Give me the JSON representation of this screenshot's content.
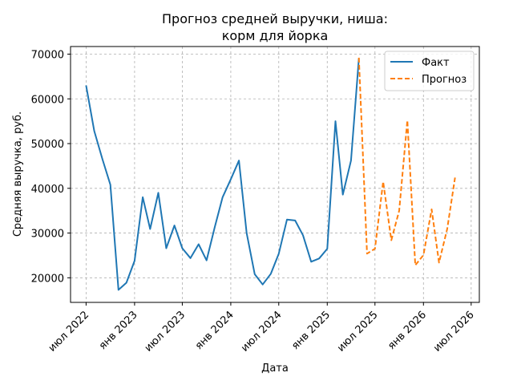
{
  "chart_data": {
    "type": "line",
    "title_line1": "Прогноз средней выручки, ниша:",
    "title_line2": "корм для йорка",
    "xlabel": "Дата",
    "ylabel": "Средняя выручка, руб.",
    "ylim": [
      14500,
      71700
    ],
    "xlim": [
      "2022-05-03",
      "2026-08-01"
    ],
    "yticks": [
      20000,
      30000,
      40000,
      50000,
      60000,
      70000
    ],
    "xticks": [
      {
        "date": "2022-07-01",
        "label": "июл 2022"
      },
      {
        "date": "2023-01-01",
        "label": "янв 2023"
      },
      {
        "date": "2023-07-01",
        "label": "июл 2023"
      },
      {
        "date": "2024-01-01",
        "label": "янв 2024"
      },
      {
        "date": "2024-07-01",
        "label": "июл 2024"
      },
      {
        "date": "2025-01-01",
        "label": "янв 2025"
      },
      {
        "date": "2025-07-01",
        "label": "июл 2025"
      },
      {
        "date": "2026-01-01",
        "label": "янв 2026"
      },
      {
        "date": "2026-07-01",
        "label": "июл 2026"
      }
    ],
    "grid": true,
    "legend_position": "top-right",
    "series": [
      {
        "name": "Факт",
        "color": "#1f77b4",
        "style": "solid",
        "points": [
          [
            "2022-07-01",
            63000
          ],
          [
            "2022-08-01",
            52800
          ],
          [
            "2022-09-01",
            46500
          ],
          [
            "2022-10-01",
            40800
          ],
          [
            "2022-11-01",
            17300
          ],
          [
            "2022-12-01",
            18900
          ],
          [
            "2023-01-01",
            23800
          ],
          [
            "2023-02-01",
            38000
          ],
          [
            "2023-03-01",
            30900
          ],
          [
            "2023-04-01",
            39000
          ],
          [
            "2023-05-01",
            26600
          ],
          [
            "2023-06-01",
            31700
          ],
          [
            "2023-07-01",
            26600
          ],
          [
            "2023-08-01",
            24400
          ],
          [
            "2023-09-01",
            27500
          ],
          [
            "2023-10-01",
            23900
          ],
          [
            "2023-11-01",
            31300
          ],
          [
            "2023-12-01",
            38000
          ],
          [
            "2024-01-01",
            42000
          ],
          [
            "2024-02-01",
            46200
          ],
          [
            "2024-03-01",
            30000
          ],
          [
            "2024-04-01",
            20800
          ],
          [
            "2024-05-01",
            18500
          ],
          [
            "2024-06-01",
            20900
          ],
          [
            "2024-07-01",
            25400
          ],
          [
            "2024-08-01",
            33000
          ],
          [
            "2024-09-01",
            32800
          ],
          [
            "2024-10-01",
            29500
          ],
          [
            "2024-11-01",
            23600
          ],
          [
            "2024-12-01",
            24300
          ],
          [
            "2025-01-01",
            26500
          ],
          [
            "2025-02-01",
            55000
          ],
          [
            "2025-03-01",
            38600
          ],
          [
            "2025-04-01",
            46200
          ],
          [
            "2025-05-01",
            69000
          ]
        ]
      },
      {
        "name": "Прогноз",
        "color": "#ff7f0e",
        "style": "dashed",
        "points": [
          [
            "2025-05-01",
            69200
          ],
          [
            "2025-06-01",
            25400
          ],
          [
            "2025-07-01",
            26500
          ],
          [
            "2025-08-01",
            41500
          ],
          [
            "2025-09-01",
            28400
          ],
          [
            "2025-10-01",
            35000
          ],
          [
            "2025-11-01",
            55200
          ],
          [
            "2025-12-01",
            22800
          ],
          [
            "2026-01-01",
            25100
          ],
          [
            "2026-02-01",
            35300
          ],
          [
            "2026-03-01",
            23400
          ],
          [
            "2026-04-01",
            30900
          ],
          [
            "2026-05-01",
            42400
          ]
        ]
      }
    ]
  }
}
